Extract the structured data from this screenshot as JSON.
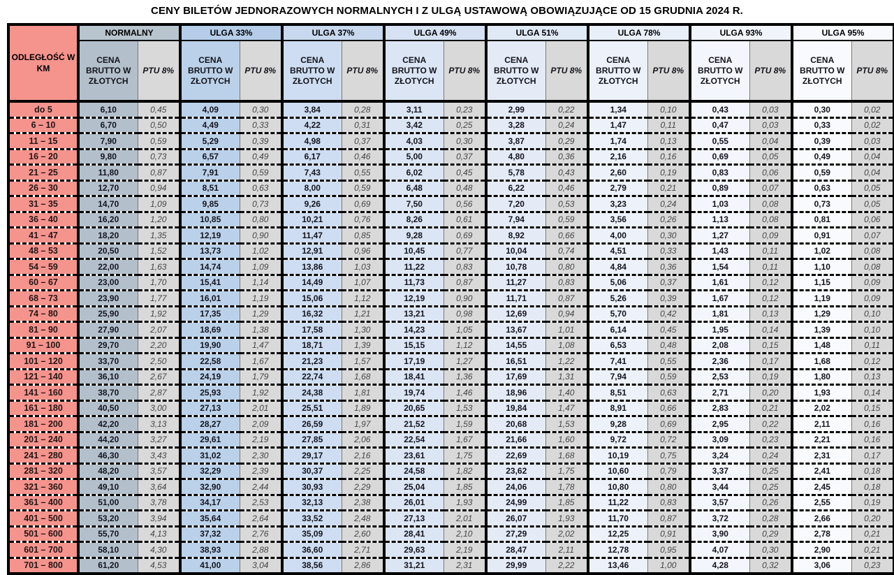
{
  "title": "CENY BILETÓW JEDNORAZOWYCH NORMALNYCH I Z ULGĄ USTAWOWĄ OBOWIĄZUJĄCE OD 15 GRUDNIA 2024 R.",
  "colors": {
    "distance_bg": "#F5938D",
    "ptu_bg": "#D9D9D9",
    "border": "#000000",
    "dash": "#050505"
  },
  "table": {
    "distance_header": "ODLEGŁOŚĆ W KM",
    "price_header": "CENA BRUTTO W ZŁOTYCH",
    "ptu_header": "PTU 8%",
    "groups": [
      {
        "label": "NORMALNY",
        "header_bg": "#B8C4CE",
        "price_bg": "#B3C0CB"
      },
      {
        "label": "ULGA 33%",
        "header_bg": "#B5CDE9",
        "price_bg": "#BBD1EA"
      },
      {
        "label": "ULGA 37%",
        "header_bg": "#C8D8EE",
        "price_bg": "#CEDDF1"
      },
      {
        "label": "ULGA 49%",
        "header_bg": "#D6E1F3",
        "price_bg": "#DBE5F4"
      },
      {
        "label": "ULGA 51%",
        "header_bg": "#E0E9F6",
        "price_bg": "#E4EBF7"
      },
      {
        "label": "ULGA 78%",
        "header_bg": "#E9EFF9",
        "price_bg": "#ECF1FA"
      },
      {
        "label": "ULGA 93%",
        "header_bg": "#F1F5FB",
        "price_bg": "#F3F6FC"
      },
      {
        "label": "ULGA 95%",
        "header_bg": "#F7F9FD",
        "price_bg": "#F9FAFE"
      }
    ],
    "rows": [
      {
        "km": "do 5",
        "values": [
          "6,10",
          "0,45",
          "4,09",
          "0,30",
          "3,84",
          "0,28",
          "3,11",
          "0,23",
          "2,99",
          "0,22",
          "1,34",
          "0,10",
          "0,43",
          "0,03",
          "0,30",
          "0,02"
        ]
      },
      {
        "km": "6 – 10",
        "values": [
          "6,70",
          "0,50",
          "4,49",
          "0,33",
          "4,22",
          "0,31",
          "3,42",
          "0,25",
          "3,28",
          "0,24",
          "1,47",
          "0,11",
          "0,47",
          "0,03",
          "0,33",
          "0,02"
        ]
      },
      {
        "km": "11 – 15",
        "values": [
          "7,90",
          "0,59",
          "5,29",
          "0,39",
          "4,98",
          "0,37",
          "4,03",
          "0,30",
          "3,87",
          "0,29",
          "1,74",
          "0,13",
          "0,55",
          "0,04",
          "0,39",
          "0,03"
        ]
      },
      {
        "km": "16 – 20",
        "values": [
          "9,80",
          "0,73",
          "6,57",
          "0,49",
          "6,17",
          "0,46",
          "5,00",
          "0,37",
          "4,80",
          "0,36",
          "2,16",
          "0,16",
          "0,69",
          "0,05",
          "0,49",
          "0,04"
        ]
      },
      {
        "km": "21 – 25",
        "values": [
          "11,80",
          "0,87",
          "7,91",
          "0,59",
          "7,43",
          "0,55",
          "6,02",
          "0,45",
          "5,78",
          "0,43",
          "2,60",
          "0,19",
          "0,83",
          "0,06",
          "0,59",
          "0,04"
        ]
      },
      {
        "km": "26 – 30",
        "values": [
          "12,70",
          "0,94",
          "8,51",
          "0,63",
          "8,00",
          "0,59",
          "6,48",
          "0,48",
          "6,22",
          "0,46",
          "2,79",
          "0,21",
          "0,89",
          "0,07",
          "0,63",
          "0,05"
        ]
      },
      {
        "km": "31 – 35",
        "values": [
          "14,70",
          "1,09",
          "9,85",
          "0,73",
          "9,26",
          "0,69",
          "7,50",
          "0,56",
          "7,20",
          "0,53",
          "3,23",
          "0,24",
          "1,03",
          "0,08",
          "0,73",
          "0,05"
        ]
      },
      {
        "km": "36 – 40",
        "values": [
          "16,20",
          "1,20",
          "10,85",
          "0,80",
          "10,21",
          "0,76",
          "8,26",
          "0,61",
          "7,94",
          "0,59",
          "3,56",
          "0,26",
          "1,13",
          "0,08",
          "0,81",
          "0,06"
        ]
      },
      {
        "km": "41 – 47",
        "values": [
          "18,20",
          "1,35",
          "12,19",
          "0,90",
          "11,47",
          "0,85",
          "9,28",
          "0,69",
          "8,92",
          "0,66",
          "4,00",
          "0,30",
          "1,27",
          "0,09",
          "0,91",
          "0,07"
        ]
      },
      {
        "km": "48 – 53",
        "values": [
          "20,50",
          "1,52",
          "13,73",
          "1,02",
          "12,91",
          "0,96",
          "10,45",
          "0,77",
          "10,04",
          "0,74",
          "4,51",
          "0,33",
          "1,43",
          "0,11",
          "1,02",
          "0,08"
        ]
      },
      {
        "km": "54 – 59",
        "values": [
          "22,00",
          "1,63",
          "14,74",
          "1,09",
          "13,86",
          "1,03",
          "11,22",
          "0,83",
          "10,78",
          "0,80",
          "4,84",
          "0,36",
          "1,54",
          "0,11",
          "1,10",
          "0,08"
        ]
      },
      {
        "km": "60 – 67",
        "values": [
          "23,00",
          "1,70",
          "15,41",
          "1,14",
          "14,49",
          "1,07",
          "11,73",
          "0,87",
          "11,27",
          "0,83",
          "5,06",
          "0,37",
          "1,61",
          "0,12",
          "1,15",
          "0,09"
        ]
      },
      {
        "km": "68 – 73",
        "values": [
          "23,90",
          "1,77",
          "16,01",
          "1,19",
          "15,06",
          "1,12",
          "12,19",
          "0,90",
          "11,71",
          "0,87",
          "5,26",
          "0,39",
          "1,67",
          "0,12",
          "1,19",
          "0,09"
        ]
      },
      {
        "km": "74 – 80",
        "values": [
          "25,90",
          "1,92",
          "17,35",
          "1,29",
          "16,32",
          "1,21",
          "13,21",
          "0,98",
          "12,69",
          "0,94",
          "5,70",
          "0,42",
          "1,81",
          "0,13",
          "1,29",
          "0,10"
        ]
      },
      {
        "km": "81 – 90",
        "values": [
          "27,90",
          "2,07",
          "18,69",
          "1,38",
          "17,58",
          "1,30",
          "14,23",
          "1,05",
          "13,67",
          "1,01",
          "6,14",
          "0,45",
          "1,95",
          "0,14",
          "1,39",
          "0,10"
        ]
      },
      {
        "km": "91 – 100",
        "values": [
          "29,70",
          "2,20",
          "19,90",
          "1,47",
          "18,71",
          "1,39",
          "15,15",
          "1,12",
          "14,55",
          "1,08",
          "6,53",
          "0,48",
          "2,08",
          "0,15",
          "1,48",
          "0,11"
        ]
      },
      {
        "km": "101 – 120",
        "values": [
          "33,70",
          "2,50",
          "22,58",
          "1,67",
          "21,23",
          "1,57",
          "17,19",
          "1,27",
          "16,51",
          "1,22",
          "7,41",
          "0,55",
          "2,36",
          "0,17",
          "1,68",
          "0,12"
        ]
      },
      {
        "km": "121 – 140",
        "values": [
          "36,10",
          "2,67",
          "24,19",
          "1,79",
          "22,74",
          "1,68",
          "18,41",
          "1,36",
          "17,69",
          "1,31",
          "7,94",
          "0,59",
          "2,53",
          "0,19",
          "1,80",
          "0,13"
        ]
      },
      {
        "km": "141 – 160",
        "values": [
          "38,70",
          "2,87",
          "25,93",
          "1,92",
          "24,38",
          "1,81",
          "19,74",
          "1,46",
          "18,96",
          "1,40",
          "8,51",
          "0,63",
          "2,71",
          "0,20",
          "1,93",
          "0,14"
        ]
      },
      {
        "km": "161 – 180",
        "values": [
          "40,50",
          "3,00",
          "27,13",
          "2,01",
          "25,51",
          "1,89",
          "20,65",
          "1,53",
          "19,84",
          "1,47",
          "8,91",
          "0,66",
          "2,83",
          "0,21",
          "2,02",
          "0,15"
        ]
      },
      {
        "km": "181 – 200",
        "values": [
          "42,20",
          "3,13",
          "28,27",
          "2,09",
          "26,59",
          "1,97",
          "21,52",
          "1,59",
          "20,68",
          "1,53",
          "9,28",
          "0,69",
          "2,95",
          "0,22",
          "2,11",
          "0,16"
        ]
      },
      {
        "km": "201 – 240",
        "values": [
          "44,20",
          "3,27",
          "29,61",
          "2,19",
          "27,85",
          "2,06",
          "22,54",
          "1,67",
          "21,66",
          "1,60",
          "9,72",
          "0,72",
          "3,09",
          "0,23",
          "2,21",
          "0,16"
        ]
      },
      {
        "km": "241 – 280",
        "values": [
          "46,30",
          "3,43",
          "31,02",
          "2,30",
          "29,17",
          "2,16",
          "23,61",
          "1,75",
          "22,69",
          "1,68",
          "10,19",
          "0,75",
          "3,24",
          "0,24",
          "2,31",
          "0,17"
        ]
      },
      {
        "km": "281 – 320",
        "values": [
          "48,20",
          "3,57",
          "32,29",
          "2,39",
          "30,37",
          "2,25",
          "24,58",
          "1,82",
          "23,62",
          "1,75",
          "10,60",
          "0,79",
          "3,37",
          "0,25",
          "2,41",
          "0,18"
        ]
      },
      {
        "km": "321 – 360",
        "values": [
          "49,10",
          "3,64",
          "32,90",
          "2,44",
          "30,93",
          "2,29",
          "25,04",
          "1,85",
          "24,06",
          "1,78",
          "10,80",
          "0,80",
          "3,44",
          "0,25",
          "2,45",
          "0,18"
        ]
      },
      {
        "km": "361 – 400",
        "values": [
          "51,00",
          "3,78",
          "34,17",
          "2,53",
          "32,13",
          "2,38",
          "26,01",
          "1,93",
          "24,99",
          "1,85",
          "11,22",
          "0,83",
          "3,57",
          "0,26",
          "2,55",
          "0,19"
        ]
      },
      {
        "km": "401 – 500",
        "values": [
          "53,20",
          "3,94",
          "35,64",
          "2,64",
          "33,52",
          "2,48",
          "27,13",
          "2,01",
          "26,07",
          "1,93",
          "11,70",
          "0,87",
          "3,72",
          "0,28",
          "2,66",
          "0,20"
        ]
      },
      {
        "km": "501 – 600",
        "values": [
          "55,70",
          "4,13",
          "37,32",
          "2,76",
          "35,09",
          "2,60",
          "28,41",
          "2,10",
          "27,29",
          "2,02",
          "12,25",
          "0,91",
          "3,90",
          "0,29",
          "2,78",
          "0,21"
        ]
      },
      {
        "km": "601 – 700",
        "values": [
          "58,10",
          "4,30",
          "38,93",
          "2,88",
          "36,60",
          "2,71",
          "29,63",
          "2,19",
          "28,47",
          "2,11",
          "12,78",
          "0,95",
          "4,07",
          "0,30",
          "2,90",
          "0,21"
        ]
      },
      {
        "km": "701 – 800",
        "values": [
          "61,20",
          "4,53",
          "41,00",
          "3,04",
          "38,56",
          "2,86",
          "31,21",
          "2,31",
          "29,99",
          "2,22",
          "13,46",
          "1,00",
          "4,28",
          "0,32",
          "3,06",
          "0,23"
        ]
      }
    ]
  }
}
